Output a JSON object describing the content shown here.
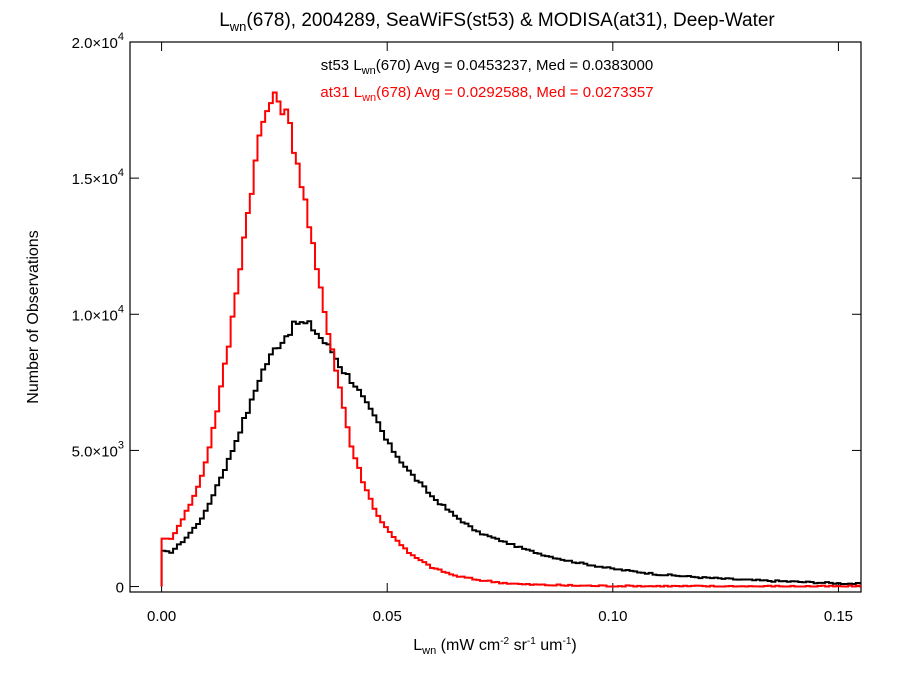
{
  "chart_data": {
    "type": "line",
    "title": {
      "prefix": "L",
      "sub": "wn",
      "rest": "(678), 2004289, SeaWiFS(st53) & MODISA(at31), Deep-Water"
    },
    "xlabel": {
      "prefix": "L",
      "sub": "wn",
      "units": " (mW cm",
      "units_exp1": "-2",
      "units_mid": " sr",
      "units_exp2": "-1",
      "units_mid2": " um",
      "units_exp3": "-1",
      "units_end": ")"
    },
    "ylabel": "Number of Observations",
    "xlim": [
      -0.007,
      0.155
    ],
    "ylim": [
      -200,
      20000
    ],
    "x_ticks": [
      {
        "value": 0.0,
        "label": "0.00"
      },
      {
        "value": 0.05,
        "label": "0.05"
      },
      {
        "value": 0.1,
        "label": "0.10"
      },
      {
        "value": 0.15,
        "label": "0.15"
      }
    ],
    "y_ticks": [
      {
        "value": 0,
        "mant": "0",
        "exp": ""
      },
      {
        "value": 5000,
        "mant": "5.0×10",
        "exp": "3"
      },
      {
        "value": 10000,
        "mant": "1.0×10",
        "exp": "4"
      },
      {
        "value": 15000,
        "mant": "1.5×10",
        "exp": "4"
      },
      {
        "value": 20000,
        "mant": "2.0×10",
        "exp": "4"
      }
    ],
    "legend": [
      {
        "pre": "st53 L",
        "sub": "wn",
        "post": "(670) Avg = 0.0453237, Med = 0.0383000",
        "color": "#000000"
      },
      {
        "pre": "at31 L",
        "sub": "wn",
        "post": "(678) Avg = 0.0292588, Med = 0.0273357",
        "color": "#ff0000"
      }
    ],
    "legend_position": "top-center",
    "series": [
      {
        "color": "#000000",
        "points": [
          [
            0.0,
            0
          ],
          [
            0.0001,
            1300
          ],
          [
            0.002,
            1250
          ],
          [
            0.005,
            1700
          ],
          [
            0.008,
            2300
          ],
          [
            0.01,
            2800
          ],
          [
            0.012,
            3600
          ],
          [
            0.015,
            4700
          ],
          [
            0.018,
            6000
          ],
          [
            0.02,
            6800
          ],
          [
            0.022,
            7800
          ],
          [
            0.025,
            8700
          ],
          [
            0.028,
            9300
          ],
          [
            0.03,
            9700
          ],
          [
            0.033,
            9600
          ],
          [
            0.035,
            9200
          ],
          [
            0.038,
            8600
          ],
          [
            0.04,
            8000
          ],
          [
            0.043,
            7400
          ],
          [
            0.045,
            6800
          ],
          [
            0.048,
            6000
          ],
          [
            0.05,
            5300
          ],
          [
            0.055,
            4200
          ],
          [
            0.06,
            3300
          ],
          [
            0.065,
            2600
          ],
          [
            0.07,
            2000
          ],
          [
            0.075,
            1700
          ],
          [
            0.08,
            1400
          ],
          [
            0.085,
            1150
          ],
          [
            0.09,
            950
          ],
          [
            0.095,
            800
          ],
          [
            0.1,
            650
          ],
          [
            0.11,
            450
          ],
          [
            0.12,
            330
          ],
          [
            0.13,
            240
          ],
          [
            0.14,
            180
          ],
          [
            0.15,
            120
          ],
          [
            0.155,
            100
          ]
        ]
      },
      {
        "color": "#ff0000",
        "points": [
          [
            0.0,
            0
          ],
          [
            0.0001,
            1800
          ],
          [
            0.002,
            1700
          ],
          [
            0.004,
            2300
          ],
          [
            0.006,
            2900
          ],
          [
            0.008,
            3600
          ],
          [
            0.01,
            4700
          ],
          [
            0.012,
            6200
          ],
          [
            0.015,
            9000
          ],
          [
            0.018,
            12500
          ],
          [
            0.02,
            14700
          ],
          [
            0.022,
            16800
          ],
          [
            0.024,
            17800
          ],
          [
            0.026,
            17900
          ],
          [
            0.028,
            17200
          ],
          [
            0.03,
            15700
          ],
          [
            0.032,
            14000
          ],
          [
            0.034,
            12000
          ],
          [
            0.036,
            10200
          ],
          [
            0.038,
            8600
          ],
          [
            0.04,
            6900
          ],
          [
            0.042,
            5200
          ],
          [
            0.045,
            3700
          ],
          [
            0.048,
            2600
          ],
          [
            0.05,
            2100
          ],
          [
            0.055,
            1200
          ],
          [
            0.06,
            700
          ],
          [
            0.065,
            400
          ],
          [
            0.07,
            250
          ],
          [
            0.075,
            150
          ],
          [
            0.08,
            80
          ],
          [
            0.09,
            40
          ],
          [
            0.1,
            20
          ],
          [
            0.12,
            10
          ],
          [
            0.155,
            5
          ]
        ]
      }
    ]
  }
}
